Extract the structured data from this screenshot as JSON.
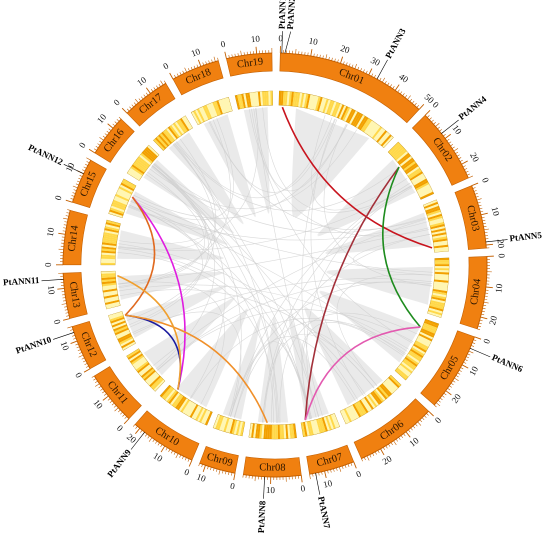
{
  "colors": {
    "band": "#f08010",
    "band_edge": "#c35f00",
    "ribbon": "#d9d9d9",
    "heat_light": "#fff6b3",
    "heat_mid": "#ffd84a",
    "heat_dark": "#f2a000"
  },
  "chromosomes": [
    {
      "name": "Chr01",
      "size": 50,
      "tick_labels": [
        "0",
        "10",
        "20",
        "30",
        "40",
        "50"
      ]
    },
    {
      "name": "Chr02",
      "size": 25,
      "tick_labels": [
        "0",
        "10",
        "20"
      ]
    },
    {
      "name": "Chr03",
      "size": 21,
      "tick_labels": [
        "0",
        "10",
        "20"
      ]
    },
    {
      "name": "Chr04",
      "size": 24,
      "tick_labels": [
        "0",
        "10",
        "20"
      ]
    },
    {
      "name": "Chr05",
      "size": 26,
      "tick_labels": [
        "0",
        "10",
        "20"
      ]
    },
    {
      "name": "Chr06",
      "size": 27,
      "tick_labels": [
        "0",
        "10",
        "20"
      ]
    },
    {
      "name": "Chr07",
      "size": 15,
      "tick_labels": [
        "0",
        "10"
      ]
    },
    {
      "name": "Chr08",
      "size": 19,
      "tick_labels": [
        "0",
        "10"
      ]
    },
    {
      "name": "Chr09",
      "size": 12,
      "tick_labels": [
        "0",
        "10"
      ]
    },
    {
      "name": "Chr10",
      "size": 22,
      "tick_labels": [
        "0",
        "10",
        "20"
      ]
    },
    {
      "name": "Chr11",
      "size": 18,
      "tick_labels": [
        "0",
        "10"
      ]
    },
    {
      "name": "Chr12",
      "size": 15,
      "tick_labels": [
        "0",
        "10"
      ]
    },
    {
      "name": "Chr13",
      "size": 15,
      "tick_labels": [
        "0",
        "10"
      ]
    },
    {
      "name": "Chr14",
      "size": 18,
      "tick_labels": [
        "0",
        "10"
      ]
    },
    {
      "name": "Chr15",
      "size": 15,
      "tick_labels": [
        "0",
        "10"
      ]
    },
    {
      "name": "Chr16",
      "size": 14,
      "tick_labels": [
        "0",
        "10"
      ]
    },
    {
      "name": "Chr17",
      "size": 16,
      "tick_labels": [
        "0",
        "10"
      ]
    },
    {
      "name": "Chr18",
      "size": 16,
      "tick_labels": [
        "0",
        "10"
      ]
    },
    {
      "name": "Chr19",
      "size": 15,
      "tick_labels": [
        "0",
        "10"
      ]
    }
  ],
  "genes": [
    {
      "name": "PtANN1",
      "chr": "Chr01",
      "pos": 0.5
    },
    {
      "name": "PtANN2",
      "chr": "Chr01",
      "pos": 1.5
    },
    {
      "name": "PtANN3",
      "chr": "Chr01",
      "pos": 33
    },
    {
      "name": "PtANN4",
      "chr": "Chr02",
      "pos": 8
    },
    {
      "name": "PtANN5",
      "chr": "Chr03",
      "pos": 19
    },
    {
      "name": "PtANN6",
      "chr": "Chr05",
      "pos": 4
    },
    {
      "name": "PtANN7",
      "chr": "Chr07",
      "pos": 13
    },
    {
      "name": "PtANN8",
      "chr": "Chr08",
      "pos": 12
    },
    {
      "name": "PtANN9",
      "chr": "Chr10",
      "pos": 18
    },
    {
      "name": "PtANN10",
      "chr": "Chr12",
      "pos": 13
    },
    {
      "name": "PtANN11",
      "chr": "Chr13",
      "pos": 13
    },
    {
      "name": "PtANN12",
      "chr": "Chr15",
      "pos": 10
    }
  ],
  "links": [
    {
      "from": "PtANN2",
      "to": "PtANN5",
      "color": "#c8141e"
    },
    {
      "from": "PtANN4",
      "to": "PtANN7",
      "color": "#a3303a"
    },
    {
      "from": "PtANN4",
      "to": "PtANN6",
      "color": "#1e8c1e"
    },
    {
      "from": "PtANN6",
      "to": "PtANN7",
      "color": "#e35ab0"
    },
    {
      "from": "PtANN9",
      "to": "PtANN12",
      "color": "#e01ce0"
    },
    {
      "from": "PtANN9",
      "to": "PtANN10",
      "color": "#1b1b9e"
    },
    {
      "from": "PtANN10",
      "to": "PtANN12",
      "color": "#e06a20"
    },
    {
      "from": "PtANN8",
      "to": "PtANN10",
      "color": "#f0902a"
    },
    {
      "from": "PtANN9",
      "to": "PtANN11",
      "color": "#f0a030"
    }
  ]
}
